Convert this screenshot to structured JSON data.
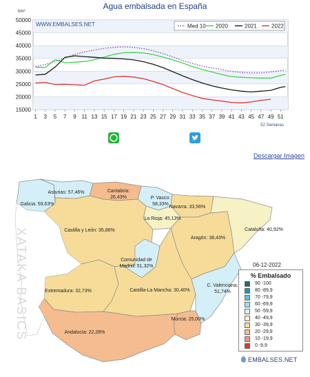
{
  "chart_title": "Agua embalsada en España",
  "chart_data": {
    "type": "line",
    "title": "Agua embalsada en España",
    "ylabel": "hm³",
    "watermark": "WWW.EMBALSES.NET",
    "x_axis_note": "52 Semanas",
    "ylim": [
      15000,
      50000
    ],
    "yticks": [
      15000,
      20000,
      25000,
      30000,
      35000,
      40000,
      45000,
      50000
    ],
    "xticks": [
      1,
      3,
      5,
      7,
      9,
      11,
      13,
      15,
      17,
      19,
      21,
      23,
      25,
      27,
      29,
      31,
      33,
      35,
      37,
      39,
      41,
      43,
      45,
      47,
      49,
      51
    ],
    "grid": true,
    "legend_position": "top-right",
    "series": [
      {
        "name": "Med 10",
        "color": "#7d3fbf",
        "dashed": true,
        "weeks": [
          1,
          3,
          5,
          7,
          9,
          11,
          13,
          15,
          17,
          19,
          21,
          23,
          25,
          27,
          29,
          31,
          33,
          35,
          37,
          39,
          41,
          43,
          45,
          47,
          49,
          51,
          52
        ],
        "values": [
          31800,
          32600,
          33800,
          35200,
          36500,
          37500,
          38300,
          38900,
          39300,
          39500,
          39300,
          38800,
          38000,
          36900,
          35600,
          34200,
          33000,
          32000,
          31300,
          30600,
          29900,
          29500,
          29300,
          29300,
          29700,
          30200,
          30500
        ]
      },
      {
        "name": "2020",
        "color": "#3fd24a",
        "dashed": false,
        "weeks": [
          1,
          3,
          5,
          7,
          9,
          11,
          13,
          15,
          17,
          19,
          21,
          23,
          25,
          27,
          29,
          31,
          33,
          35,
          37,
          39,
          41,
          43,
          45,
          47,
          49,
          51,
          52
        ],
        "values": [
          31500,
          31500,
          34500,
          33300,
          33500,
          33800,
          34500,
          35500,
          36600,
          37200,
          37300,
          37100,
          36500,
          35500,
          34400,
          33200,
          31800,
          30700,
          29700,
          28700,
          27900,
          27600,
          27400,
          27300,
          27300,
          28300,
          28800
        ]
      },
      {
        "name": "2021",
        "color": "#1a1a1a",
        "dashed": false,
        "weeks": [
          1,
          3,
          5,
          7,
          9,
          11,
          13,
          15,
          17,
          19,
          21,
          23,
          25,
          27,
          29,
          31,
          33,
          35,
          37,
          39,
          41,
          43,
          45,
          47,
          49,
          51,
          52
        ],
        "values": [
          28500,
          28800,
          31600,
          35400,
          36000,
          35700,
          35400,
          35100,
          35000,
          34800,
          34400,
          33700,
          32700,
          31400,
          29800,
          28200,
          26700,
          25400,
          24300,
          23400,
          22700,
          22200,
          21900,
          22200,
          22500,
          23700,
          24000
        ]
      },
      {
        "name": "2022",
        "color": "#e0342a",
        "dashed": false,
        "weeks": [
          1,
          3,
          5,
          7,
          9,
          11,
          13,
          15,
          17,
          19,
          21,
          23,
          25,
          27,
          29,
          31,
          33,
          35,
          37,
          39,
          41,
          43,
          45,
          47,
          49
        ],
        "values": [
          25400,
          25600,
          24800,
          24900,
          24700,
          24500,
          26200,
          26900,
          27800,
          28000,
          27700,
          27100,
          26000,
          24800,
          23200,
          21700,
          20500,
          19400,
          18800,
          18300,
          17800,
          17600,
          18000,
          18600,
          19000
        ]
      }
    ]
  },
  "share": {
    "whatsapp_icon": "whatsapp-icon",
    "twitter_icon": "twitter-icon"
  },
  "download_label": "Descargar Imagen",
  "map": {
    "date": "06-12-2022",
    "legend_title": "% Embalsado",
    "legend": [
      {
        "label": "90 -100",
        "color": "#1f6b6d"
      },
      {
        "label": "80 -89,9",
        "color": "#2d8fb8"
      },
      {
        "label": "70 -79,9",
        "color": "#58c3e6"
      },
      {
        "label": "60 -69,9",
        "color": "#a7dcee"
      },
      {
        "label": "50 -59,9",
        "color": "#d5eff8"
      },
      {
        "label": "40 -49,9",
        "color": "#f7f2c6"
      },
      {
        "label": "30 -39,9",
        "color": "#f6dc98"
      },
      {
        "label": "20 -29,9",
        "color": "#f4bc8f"
      },
      {
        "label": "10 -19,9",
        "color": "#f0948c"
      },
      {
        "label": "0 -9,9",
        "color": "#e03a2a"
      }
    ],
    "regions": [
      {
        "id": "galicia",
        "label": "Galicia: 59,63%",
        "value": 59.63,
        "color": "#d5eff8"
      },
      {
        "id": "asturias",
        "label": "Asturias: 57,46%",
        "value": 57.46,
        "color": "#d5eff8"
      },
      {
        "id": "cantabria",
        "label": "Cantabria: 26,43%",
        "value": 26.43,
        "color": "#f4bc8f"
      },
      {
        "id": "pvasco",
        "label": "P. Vasco: 58,33%",
        "value": 58.33,
        "color": "#d5eff8"
      },
      {
        "id": "navarra",
        "label": "Navarra: 33,56%",
        "value": 33.56,
        "color": "#f6dc98"
      },
      {
        "id": "larioja",
        "label": "La Rioja: 45,13%",
        "value": 45.13,
        "color": "#f7f2c6"
      },
      {
        "id": "cataluna",
        "label": "Cataluña: 40,92%",
        "value": 40.92,
        "color": "#f7f2c6"
      },
      {
        "id": "castillaleon",
        "label": "Castilla y León: 35,86%",
        "value": 35.86,
        "color": "#f6dc98"
      },
      {
        "id": "aragon",
        "label": "Aragón: 38,43%",
        "value": 38.43,
        "color": "#f6dc98"
      },
      {
        "id": "madrid",
        "label": "Comunidad de Madrid: 51,32%",
        "value": 51.32,
        "color": "#d5eff8"
      },
      {
        "id": "extremadura",
        "label": "Extremadura: 32,73%",
        "value": 32.73,
        "color": "#f6dc98"
      },
      {
        "id": "clamancha",
        "label": "Castilla-La Mancha: 30,40%",
        "value": 30.4,
        "color": "#f6dc98"
      },
      {
        "id": "valenciana",
        "label": "C. Valenciana: 51,74%",
        "value": 51.74,
        "color": "#d5eff8"
      },
      {
        "id": "murcia",
        "label": "Murcia: 25,00%",
        "value": 25.0,
        "color": "#f4bc8f"
      },
      {
        "id": "andalucia",
        "label": "Andalucía: 22,28%",
        "value": 22.28,
        "color": "#f4bc8f"
      }
    ]
  },
  "brand": "EMBALSES.NET",
  "watermark_text": "XATAKA BASICS"
}
